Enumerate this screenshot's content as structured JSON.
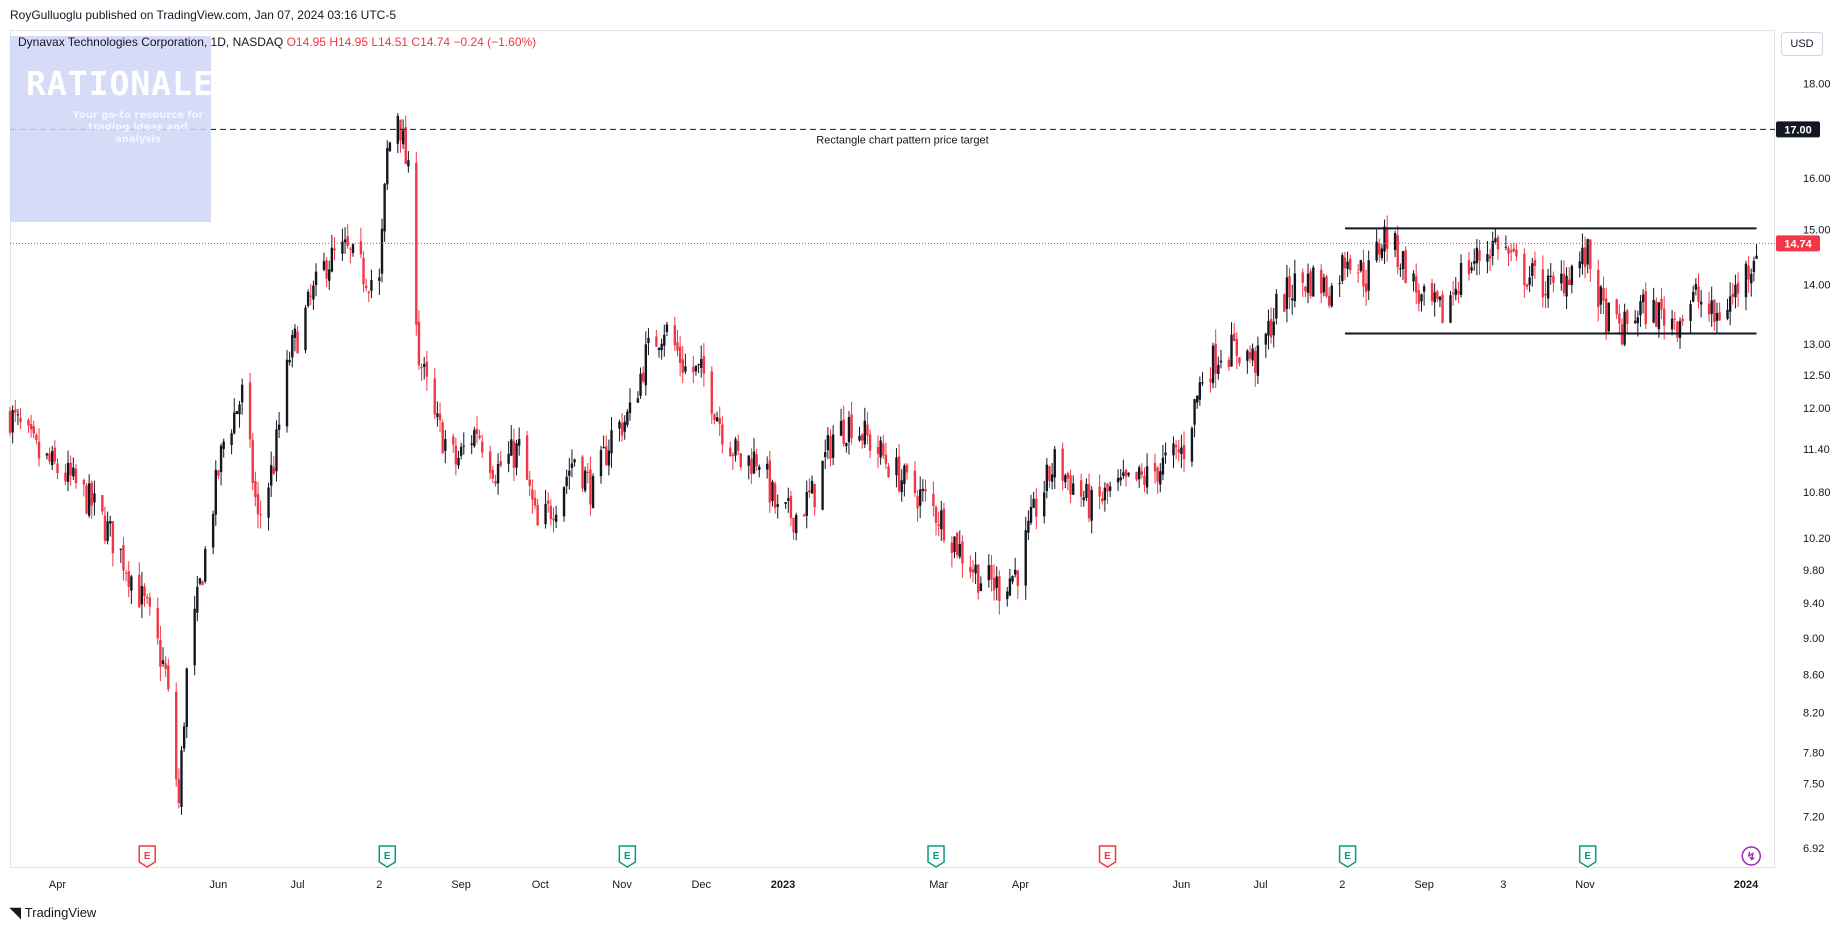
{
  "publisher_line": "RoyGulluoglu published on TradingView.com, Jan 07, 2024 03:16 UTC-5",
  "legend": {
    "symbol": "Dynavax Technologies Corporation, 1D, NASDAQ",
    "open": "O14.95",
    "high": "H14.95",
    "low": "L14.51",
    "close": "C14.74",
    "change": "−0.24 (−1.60%)"
  },
  "watermark": {
    "title": "RATIONALE",
    "subtitle": "Your go-to resource for trading ideas and analysis"
  },
  "currency_button": "USD",
  "footer_brand": "TradingView",
  "colors": {
    "up": "#131722",
    "down": "#f23645",
    "price_line": "#f23645",
    "target_line": "#131722",
    "earnings_red": "#f23645",
    "earnings_green": "#089981",
    "dividend_purple": "#9c27b0"
  },
  "chart_data": {
    "type": "candlestick",
    "title": "Dynavax Technologies Corporation, 1D, NASDAQ",
    "y_scale": "log",
    "ylim": [
      6.75,
      19.2
    ],
    "x_range": [
      "2022-03-14",
      "2024-01-12"
    ],
    "y_ticks": [
      "18.00",
      "16.00",
      "15.00",
      "14.00",
      "13.00",
      "12.50",
      "12.00",
      "11.40",
      "10.80",
      "10.20",
      "9.80",
      "9.40",
      "9.00",
      "8.60",
      "8.20",
      "7.80",
      "7.50",
      "7.20",
      "6.92"
    ],
    "x_ticks": [
      {
        "label": "Apr",
        "date": "2022-04-01"
      },
      {
        "label": "Jun",
        "date": "2022-06-01"
      },
      {
        "label": "Jul",
        "date": "2022-07-01"
      },
      {
        "label": "2",
        "date": "2022-08-01"
      },
      {
        "label": "Sep",
        "date": "2022-09-01"
      },
      {
        "label": "Oct",
        "date": "2022-10-01"
      },
      {
        "label": "Nov",
        "date": "2022-11-01"
      },
      {
        "label": "Dec",
        "date": "2022-12-01"
      },
      {
        "label": "2023",
        "date": "2023-01-01"
      },
      {
        "label": "Mar",
        "date": "2023-03-01"
      },
      {
        "label": "Apr",
        "date": "2023-04-01"
      },
      {
        "label": "Jun",
        "date": "2023-06-01"
      },
      {
        "label": "Jul",
        "date": "2023-07-01"
      },
      {
        "label": "2",
        "date": "2023-08-01"
      },
      {
        "label": "Sep",
        "date": "2023-09-01"
      },
      {
        "label": "3",
        "date": "2023-10-01"
      },
      {
        "label": "Nov",
        "date": "2023-11-01"
      },
      {
        "label": "2024",
        "date": "2024-01-01"
      }
    ],
    "last_price": 14.74,
    "last_price_label": "14.74",
    "price_target": 17.0,
    "price_target_label": "17.00",
    "annotation": "Rectangle chart pattern price target",
    "rectangle": {
      "top": 15.02,
      "bottom": 13.17,
      "start": "2023-08-02",
      "end": "2024-01-05"
    },
    "events": [
      {
        "type": "earnings",
        "color": "red",
        "date": "2022-05-05",
        "label": "E"
      },
      {
        "type": "earnings",
        "color": "green",
        "date": "2022-08-04",
        "label": "E"
      },
      {
        "type": "earnings",
        "color": "green",
        "date": "2022-11-03",
        "label": "E"
      },
      {
        "type": "earnings",
        "color": "green",
        "date": "2023-02-28",
        "label": "E"
      },
      {
        "type": "earnings",
        "color": "red",
        "date": "2023-05-04",
        "label": "E"
      },
      {
        "type": "earnings",
        "color": "green",
        "date": "2023-08-03",
        "label": "E"
      },
      {
        "type": "earnings",
        "color": "green",
        "date": "2023-11-02",
        "label": "E"
      },
      {
        "type": "dividend",
        "color": "purple",
        "date": "2024-01-03",
        "label": ""
      }
    ],
    "price_path": [
      [
        "2022-03-14",
        11.9
      ],
      [
        "2022-03-25",
        11.3
      ],
      [
        "2022-04-05",
        11.0
      ],
      [
        "2022-04-15",
        10.6
      ],
      [
        "2022-04-25",
        10.0
      ],
      [
        "2022-05-05",
        9.3
      ],
      [
        "2022-05-12",
        8.6
      ],
      [
        "2022-05-17",
        7.3
      ],
      [
        "2022-05-20",
        8.6
      ],
      [
        "2022-05-26",
        9.8
      ],
      [
        "2022-06-03",
        11.5
      ],
      [
        "2022-06-10",
        12.2
      ],
      [
        "2022-06-16",
        10.4
      ],
      [
        "2022-06-22",
        11.2
      ],
      [
        "2022-06-28",
        12.8
      ],
      [
        "2022-07-05",
        13.6
      ],
      [
        "2022-07-12",
        14.4
      ],
      [
        "2022-07-19",
        14.6
      ],
      [
        "2022-07-26",
        14.2
      ],
      [
        "2022-08-01",
        14.0
      ],
      [
        "2022-08-04",
        16.5
      ],
      [
        "2022-08-08",
        17.4
      ],
      [
        "2022-08-12",
        16.0
      ],
      [
        "2022-08-16",
        12.8
      ],
      [
        "2022-08-22",
        11.8
      ],
      [
        "2022-08-30",
        11.2
      ],
      [
        "2022-09-07",
        11.7
      ],
      [
        "2022-09-14",
        11.1
      ],
      [
        "2022-09-23",
        11.4
      ],
      [
        "2022-09-30",
        10.3
      ],
      [
        "2022-10-07",
        10.7
      ],
      [
        "2022-10-14",
        11.3
      ],
      [
        "2022-10-21",
        10.8
      ],
      [
        "2022-10-28",
        11.6
      ],
      [
        "2022-11-04",
        11.9
      ],
      [
        "2022-11-10",
        12.8
      ],
      [
        "2022-11-17",
        13.3
      ],
      [
        "2022-11-25",
        12.6
      ],
      [
        "2022-12-02",
        12.5
      ],
      [
        "2022-12-09",
        11.7
      ],
      [
        "2022-12-16",
        11.2
      ],
      [
        "2022-12-23",
        11.3
      ],
      [
        "2022-12-30",
        10.5
      ],
      [
        "2023-01-06",
        10.5
      ],
      [
        "2023-01-13",
        10.8
      ],
      [
        "2023-01-20",
        11.6
      ],
      [
        "2023-01-27",
        11.8
      ],
      [
        "2023-02-03",
        11.5
      ],
      [
        "2023-02-10",
        11.2
      ],
      [
        "2023-02-17",
        10.9
      ],
      [
        "2023-02-24",
        10.7
      ],
      [
        "2023-03-03",
        10.4
      ],
      [
        "2023-03-10",
        10.0
      ],
      [
        "2023-03-17",
        9.7
      ],
      [
        "2023-03-24",
        9.6
      ],
      [
        "2023-03-31",
        9.8
      ],
      [
        "2023-04-07",
        10.6
      ],
      [
        "2023-04-14",
        11.2
      ],
      [
        "2023-04-21",
        10.9
      ],
      [
        "2023-04-28",
        10.6
      ],
      [
        "2023-05-05",
        10.8
      ],
      [
        "2023-05-12",
        10.9
      ],
      [
        "2023-05-19",
        11.0
      ],
      [
        "2023-05-26",
        11.2
      ],
      [
        "2023-06-02",
        11.4
      ],
      [
        "2023-06-09",
        12.5
      ],
      [
        "2023-06-16",
        12.9
      ],
      [
        "2023-06-23",
        12.9
      ],
      [
        "2023-06-30",
        12.7
      ],
      [
        "2023-07-07",
        13.6
      ],
      [
        "2023-07-14",
        14.0
      ],
      [
        "2023-07-21",
        14.1
      ],
      [
        "2023-07-28",
        13.9
      ],
      [
        "2023-08-03",
        14.6
      ],
      [
        "2023-08-10",
        14.1
      ],
      [
        "2023-08-17",
        14.9
      ],
      [
        "2023-08-24",
        14.4
      ],
      [
        "2023-08-31",
        13.7
      ],
      [
        "2023-09-08",
        13.5
      ],
      [
        "2023-09-15",
        14.2
      ],
      [
        "2023-09-22",
        14.5
      ],
      [
        "2023-09-29",
        14.8
      ],
      [
        "2023-10-06",
        14.3
      ],
      [
        "2023-10-13",
        14.1
      ],
      [
        "2023-10-20",
        13.9
      ],
      [
        "2023-10-27",
        14.3
      ],
      [
        "2023-11-02",
        14.5
      ],
      [
        "2023-11-08",
        13.5
      ],
      [
        "2023-11-15",
        13.2
      ],
      [
        "2023-11-22",
        13.6
      ],
      [
        "2023-11-29",
        13.5
      ],
      [
        "2023-12-06",
        13.4
      ],
      [
        "2023-12-13",
        13.8
      ],
      [
        "2023-12-20",
        13.4
      ],
      [
        "2023-12-27",
        13.8
      ],
      [
        "2024-01-03",
        14.4
      ],
      [
        "2024-01-05",
        14.74
      ]
    ]
  }
}
